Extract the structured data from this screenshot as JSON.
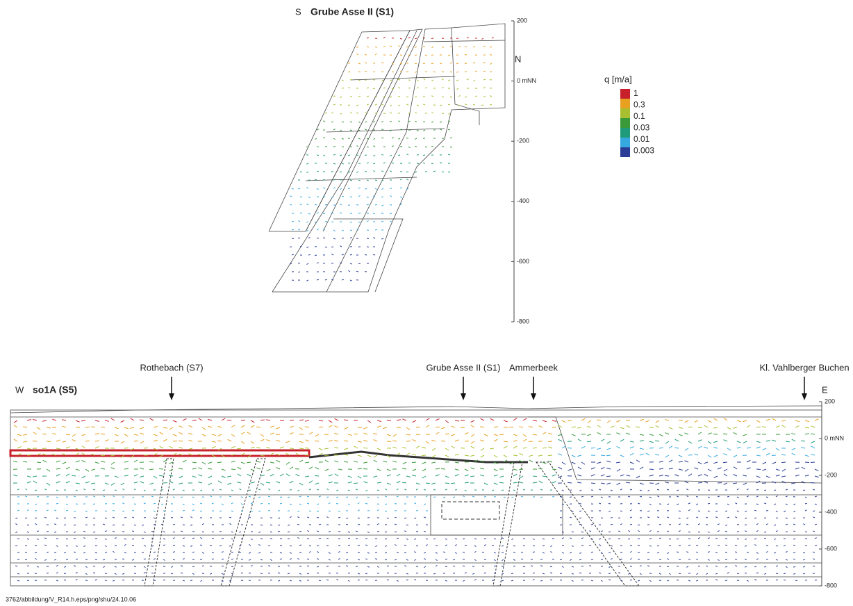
{
  "top_panel": {
    "direction_left": "S",
    "title": "Grube Asse II (S1)",
    "direction_right": "N",
    "yticks": [
      200,
      {
        "value": 0,
        "label": "0 mNN"
      },
      -200,
      -400,
      -600,
      -800
    ]
  },
  "bottom_panel": {
    "direction_left": "W",
    "title": "so1A (S5)",
    "direction_right": "E",
    "markers": [
      "Rothebach (S7)",
      "Grube Asse II (S1)",
      "Ammerbeek",
      "Kl. Vahlberger Buchen"
    ],
    "yticks": [
      200,
      {
        "value": 0,
        "label": "0 mNN"
      },
      -200,
      -400,
      -600,
      -800
    ]
  },
  "legend": {
    "title": "q [m/a]",
    "colors": [
      "#c8202a",
      "#e8a020",
      "#a8c030",
      "#3a9a3a",
      "#1f9a7a",
      "#35a8e0",
      "#2a3c96"
    ],
    "labels": [
      "1",
      "0.3",
      "0.1",
      "0.03",
      "0.01",
      "0.003"
    ]
  },
  "footer": "3762/abbildung/V_R14.h.eps/png/shu/24.10.06"
}
